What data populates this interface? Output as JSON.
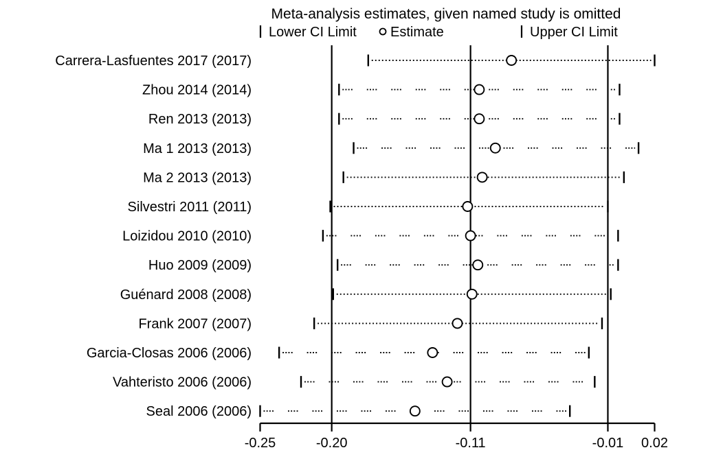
{
  "chart_data": {
    "type": "scatter",
    "subtype": "leave-one-out-sensitivity-forest-plot",
    "title": "Meta-analysis estimates, given named study is omitted",
    "legend": {
      "lower": "Lower CI Limit",
      "estimate": "Estimate",
      "upper": "Upper CI Limit"
    },
    "xlabel": "",
    "xlim": [
      -0.25,
      0.02
    ],
    "grid": false,
    "x_ticks": [
      {
        "value": -0.25,
        "label": "-0.25"
      },
      {
        "value": -0.201,
        "label": "-0.20"
      },
      {
        "value": -0.106,
        "label": "-0.11"
      },
      {
        "value": -0.012,
        "label": "-0.01"
      },
      {
        "value": 0.02,
        "label": "0.02"
      }
    ],
    "reference_lines": {
      "lower": -0.201,
      "estimate": -0.106,
      "upper": -0.012
    },
    "studies": [
      {
        "label": "Carrera-Lasfuentes 2017 (2017)",
        "lower": -0.176,
        "estimate": -0.078,
        "upper": 0.02,
        "dot_style": "dense"
      },
      {
        "label": "Zhou 2014 (2014)",
        "lower": -0.196,
        "estimate": -0.1,
        "upper": -0.004,
        "dot_style": "cluster"
      },
      {
        "label": "Ren 2013 (2013)",
        "lower": -0.196,
        "estimate": -0.1,
        "upper": -0.004,
        "dot_style": "cluster"
      },
      {
        "label": "Ma 1 2013 (2013)",
        "lower": -0.186,
        "estimate": -0.089,
        "upper": 0.009,
        "dot_style": "cluster"
      },
      {
        "label": "Ma 2 2013 (2013)",
        "lower": -0.193,
        "estimate": -0.098,
        "upper": -0.001,
        "dot_style": "dense"
      },
      {
        "label": "Silvestri 2011 (2011)",
        "lower": -0.202,
        "estimate": -0.108,
        "upper": -0.012,
        "dot_style": "dense"
      },
      {
        "label": "Loizidou 2010 (2010)",
        "lower": -0.207,
        "estimate": -0.106,
        "upper": -0.005,
        "dot_style": "cluster"
      },
      {
        "label": "Huo 2009 (2009)",
        "lower": -0.197,
        "estimate": -0.101,
        "upper": -0.005,
        "dot_style": "cluster"
      },
      {
        "label": "Guénard 2008 (2008)",
        "lower": -0.2,
        "estimate": -0.105,
        "upper": -0.01,
        "dot_style": "dense"
      },
      {
        "label": "Frank 2007 (2007)",
        "lower": -0.213,
        "estimate": -0.115,
        "upper": -0.016,
        "dot_style": "dense"
      },
      {
        "label": "Garcia-Closas 2006 (2006)",
        "lower": -0.237,
        "estimate": -0.132,
        "upper": -0.025,
        "dot_style": "cluster"
      },
      {
        "label": "Vahteristo 2006 (2006)",
        "lower": -0.222,
        "estimate": -0.122,
        "upper": -0.021,
        "dot_style": "cluster"
      },
      {
        "label": "Seal 2006 (2006)",
        "lower": -0.25,
        "estimate": -0.144,
        "upper": -0.038,
        "dot_style": "cluster"
      }
    ]
  }
}
